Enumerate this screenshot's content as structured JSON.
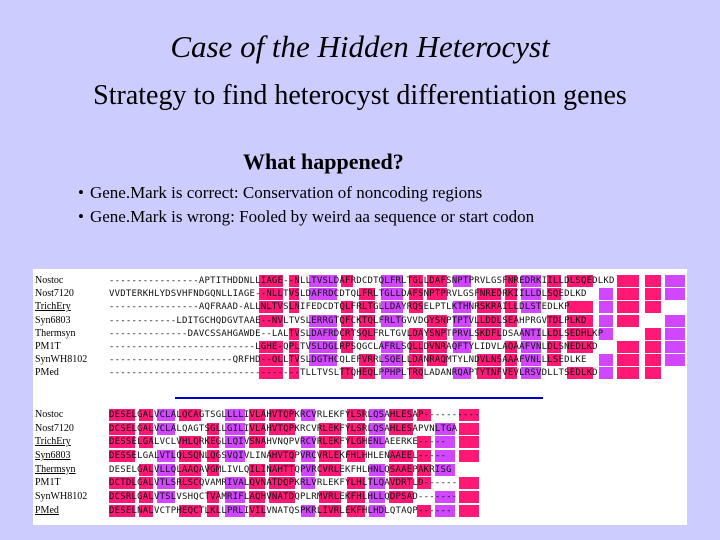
{
  "slide": {
    "title": "Case of the Hidden Heterocyst",
    "subtitle": "Strategy to find heterocyst differentiation genes",
    "section_heading": "What happened?",
    "bullets": [
      "Gene.Mark is correct: Conservation of noncoding regions",
      "Gene.Mark is wrong: Fooled by weird aa sequence or start codon"
    ]
  },
  "colors": {
    "slide_background": "#ccccff",
    "identical_residue": "#ff0066",
    "similar_residue": "#cc33ff",
    "divider": "#0000cc"
  },
  "alignment": {
    "block1": [
      {
        "name": "Nostoc",
        "seq": "----------------APTITHDDNLLIAGE--NLLTVSLDAFRDCDTQLFRLTGLLDAFSNPTPRVLGSFNREDRKIILLDLSQEDLKD"
      },
      {
        "name": "Nost7120",
        "seq": "VVDTERKHLYDSVHFNDGQNLLIAGE--NLLTVSLDAFRDCDTQLFRLTGLLDAFSNPTPRVLGSFNREDRKIILLDLSQEDLKD"
      },
      {
        "name": "TrichEry",
        "seq": "----------------AQFRAAD-ALLNLTVSLNIFEDCDTQLFRLTGLLDAYRQSELPTLKTHNRSKRAILLDLSTEDLKP"
      },
      {
        "name": "Syn6803",
        "seq": "------------LDITGCHQDGVTAAE--NVLTVSLERRGTQFCKTQLFRLTGVVDGYSNPTPTVLLDDLSEAHPRGVTDLPLKD"
      },
      {
        "name": "Thermsyn",
        "seq": "--------------DAVCSSAHGAWDE--LALTVSLDAFRDCRTSQLFRLTGVLDAYSNPTPRVLSKDFLDSAANTILLDLSEDHLKP"
      },
      {
        "name": "PM1T",
        "seq": "--------------------------LGHE-QPLTVSLDGLRPSQGCLAFRLSQLLDVNRAQFTYLIDVLAQAAFVNLDLSNEDLKD"
      },
      {
        "name": "SynWH8102",
        "seq": "----------------------QRFHD--QLLTVSLDGTHCQLEFVRRLSQELLDANRAQMTYLNDVLNSAAAFVNLLLSEDLKE"
      },
      {
        "name": "PMed",
        "seq": "----------------------------------TLLTVSLTTQHEQLPPHPLTRQLADANRQAPTYTNFVEVLRSVDLLTSEDLKD"
      }
    ],
    "block2": [
      {
        "name": "Nostoc",
        "seq": "DESELGALVCLALQCAGTSGLLLLIVLAHVTQPKRCVRLEKFYLSRLQSAHLESAP----------"
      },
      {
        "name": "Nost7120",
        "seq": "DCSELGALVCLALQAGTSGLLGILIVLAHVTQPKRCVRLEKFYLSRLQSAHLESAPVNLTGA"
      },
      {
        "name": "TrichEry",
        "seq": "DESSELGALVCLVHLQRKEGLLQIVSNAHVNQPVRCVRLEKFYLGHENLAEERKE-----"
      },
      {
        "name": "Syn6803",
        "seq": "DESSELGALVTLQLSQNLQGSVQIVLINAHVTQPVRCVRLEKFHLHHLENAAEEL-----"
      },
      {
        "name": "Thermsyn",
        "seq": "DESELGALVLLQLAAQAVGMLIVLQILINAHTTQPVRCVRLEKFHLHNLQSAAEPAKRISG"
      },
      {
        "name": "PM1T",
        "seq": "DCTDLGALVTLSRLSCQVAMRIVALQVNATDQPKRLVRLEKFYLHLTLQAVDRTLD------"
      },
      {
        "name": "SynWH8102",
        "seq": "DCSRLGALVTSLVSHQCTVAMRIFLAQHVNATDQPLRMVRLEKFHLHLLQDPSAD-------"
      },
      {
        "name": "PMed",
        "seq": "DESELNALVCTPHEQCTLKLLPRLIVILVNATQSPKRLIVRLEKFHLHDLQTAQP------"
      }
    ]
  }
}
